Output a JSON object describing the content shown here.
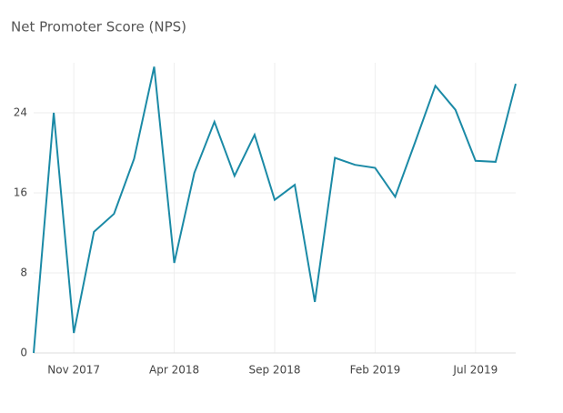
{
  "chart_data": {
    "type": "line",
    "title": "Net Promoter Score (NPS)",
    "x": [
      "2017-09",
      "2017-10",
      "2017-11",
      "2017-12",
      "2018-01",
      "2018-02",
      "2018-03",
      "2018-04",
      "2018-05",
      "2018-06",
      "2018-07",
      "2018-08",
      "2018-09",
      "2018-10",
      "2018-11",
      "2018-12",
      "2019-01",
      "2019-02",
      "2019-03",
      "2019-04",
      "2019-05",
      "2019-06",
      "2019-07",
      "2019-08",
      "2019-09"
    ],
    "series": [
      {
        "name": "NPS",
        "color": "#1b8aa6",
        "values": [
          0,
          24,
          2,
          12.1,
          13.9,
          19.4,
          28.6,
          9,
          18,
          23.1,
          17.7,
          21.8,
          15.3,
          16.8,
          5.1,
          19.5,
          18.8,
          18.5,
          15.6,
          21.1,
          26.7,
          24.3,
          19.2,
          19.1,
          26.9
        ]
      }
    ],
    "xticks": [
      {
        "value": "2017-11",
        "label": "Nov 2017"
      },
      {
        "value": "2018-04",
        "label": "Apr 2018"
      },
      {
        "value": "2018-09",
        "label": "Sep 2018"
      },
      {
        "value": "2019-02",
        "label": "Feb 2019"
      },
      {
        "value": "2019-07",
        "label": "Jul 2019"
      }
    ],
    "ylim": [
      0,
      29
    ],
    "yticks": [
      0,
      8,
      16,
      24
    ],
    "grid": true
  }
}
